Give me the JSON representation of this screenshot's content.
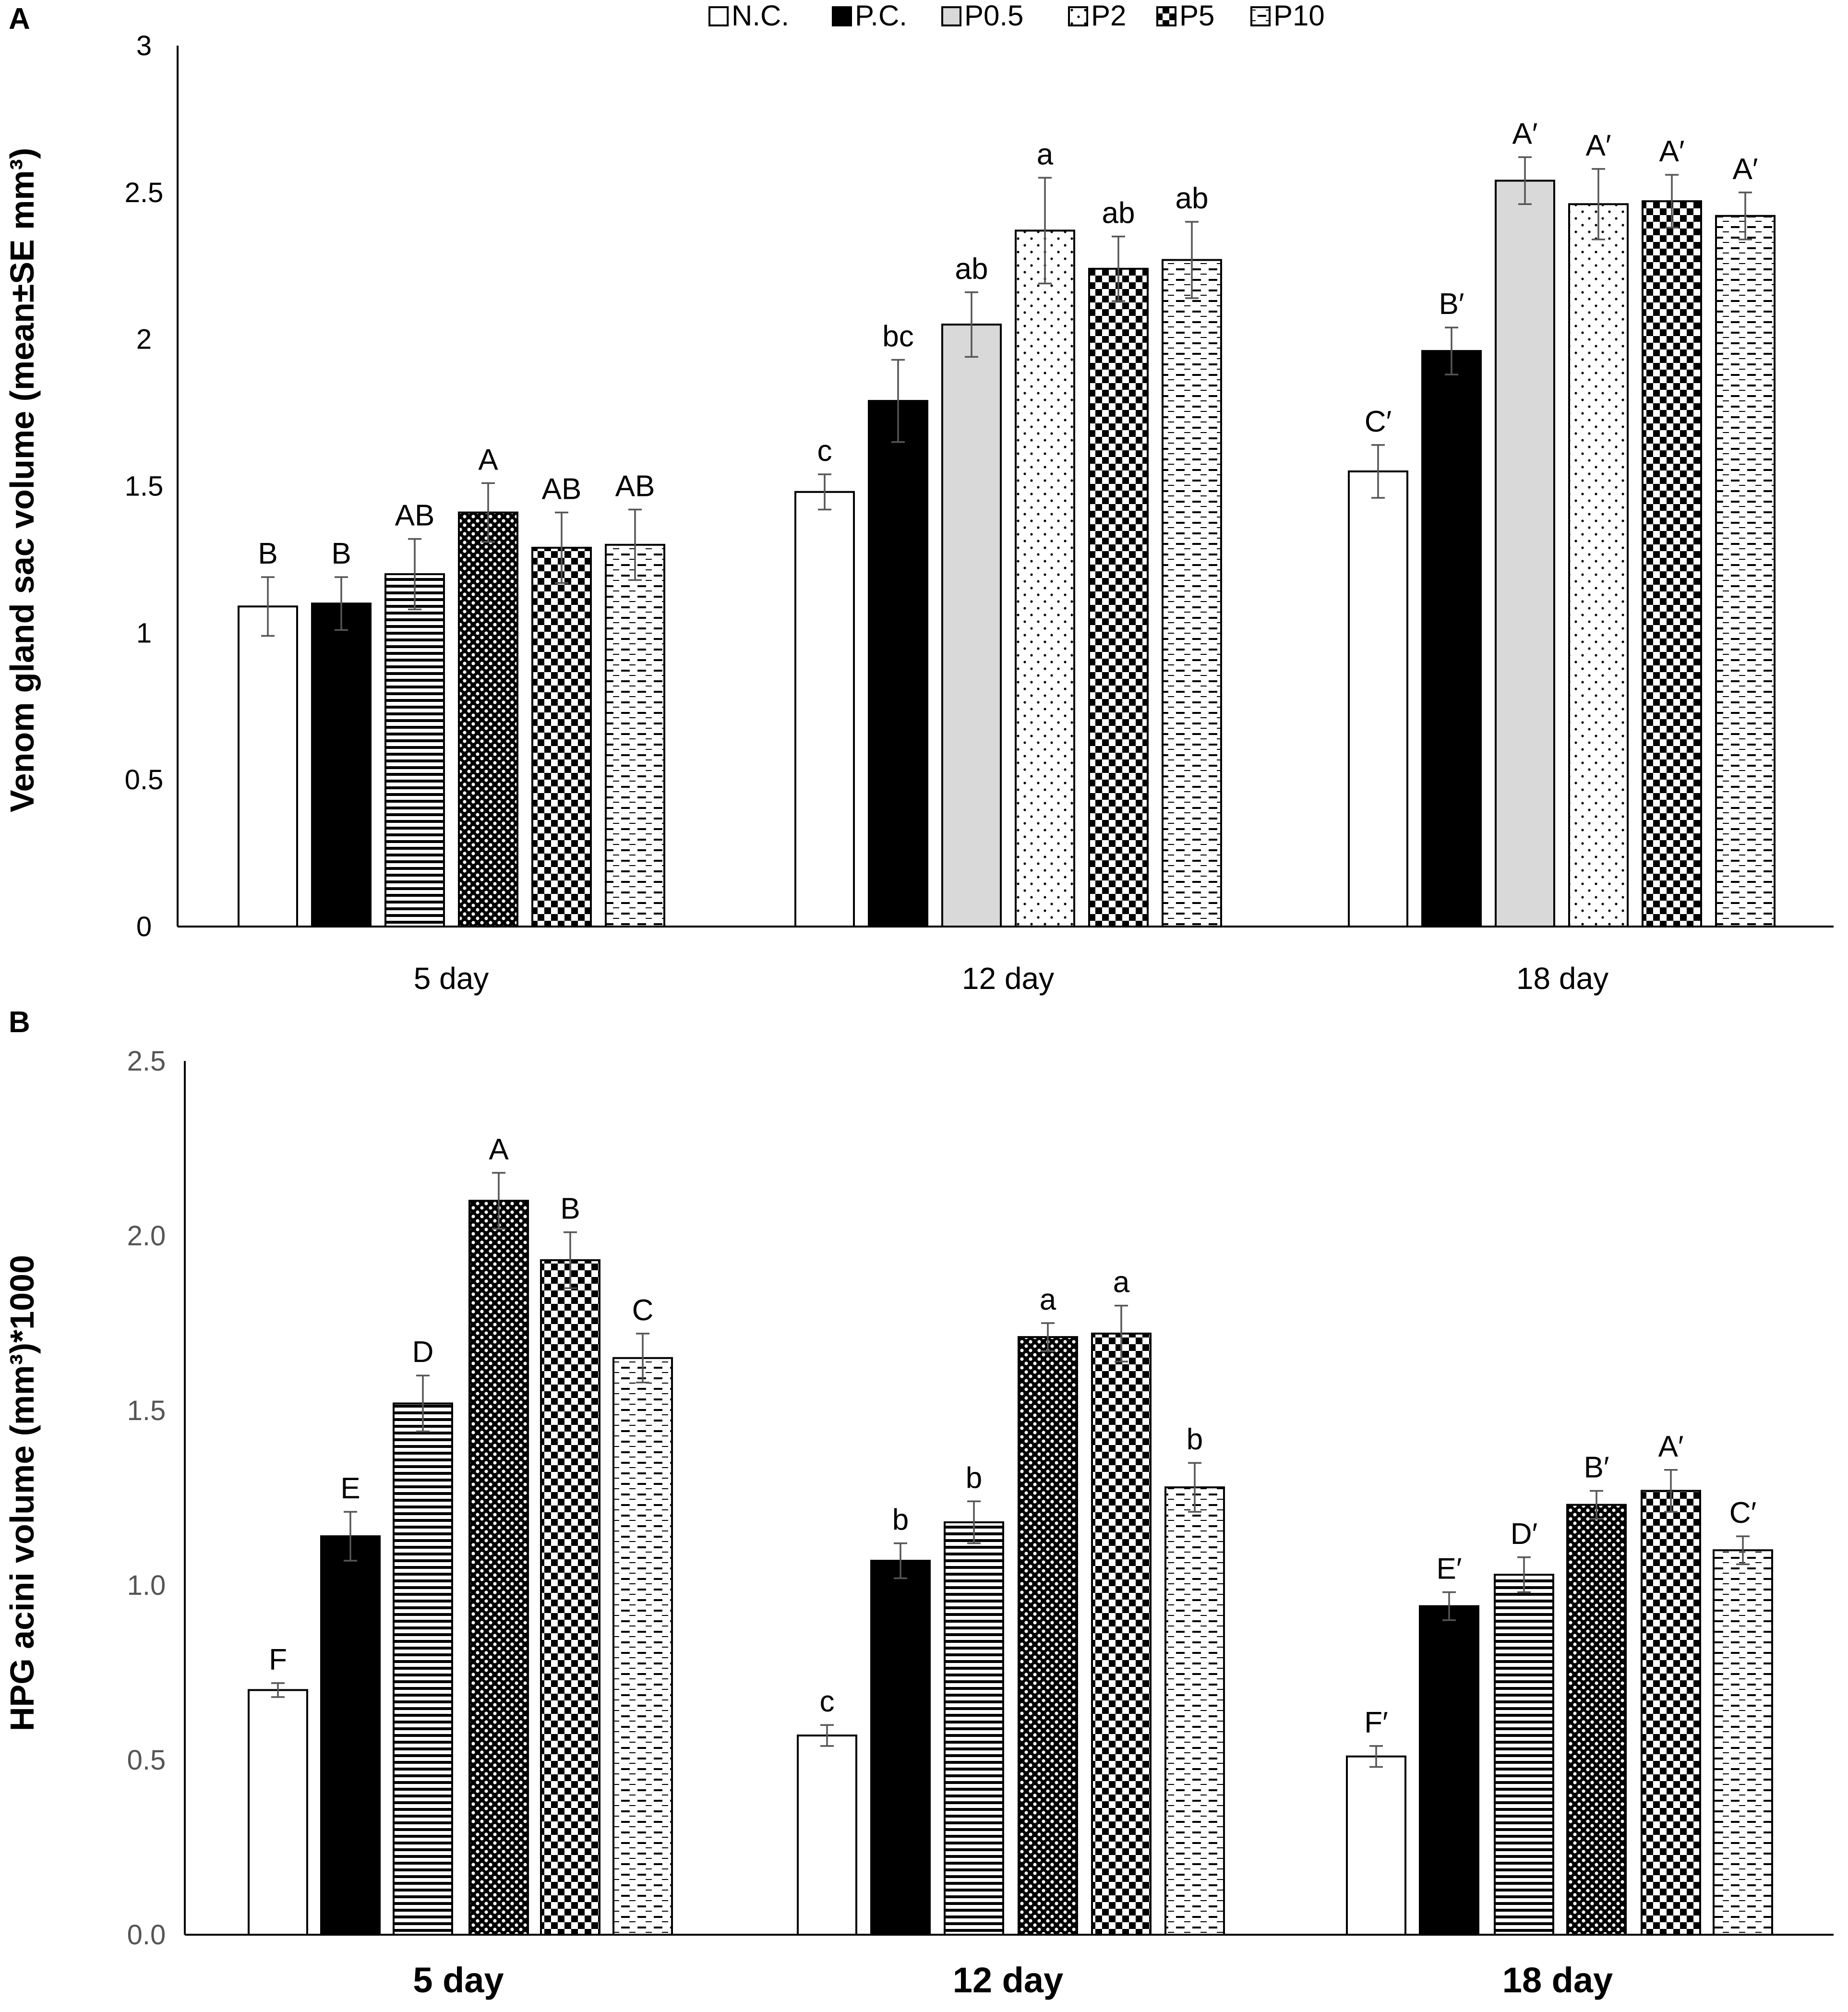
{
  "legend": {
    "items": [
      {
        "name": "N.C.",
        "pattern": "none"
      },
      {
        "name": "P.C.",
        "pattern": "solid-black"
      },
      {
        "name": "P0.5",
        "pattern": "light-gray"
      },
      {
        "name": "P2",
        "pattern": "sparse-dots"
      },
      {
        "name": "P5",
        "pattern": "checker"
      },
      {
        "name": "P10",
        "pattern": "dashes"
      }
    ]
  },
  "chart_data": [
    {
      "panel_label": "A",
      "type": "bar",
      "title": "",
      "xlabel": "",
      "ylabel": "Venom gland sac volume (mean±SE mm³)",
      "ylim": [
        0,
        3
      ],
      "yticks": [
        "0",
        "0.5",
        "1",
        "1.5",
        "2",
        "2.5",
        "3"
      ],
      "categories": [
        "5 day",
        "12 day",
        "18 day"
      ],
      "series": [
        {
          "name": "N.C.",
          "values": [
            1.09,
            1.48,
            1.55
          ],
          "errors": [
            0.1,
            0.06,
            0.09
          ],
          "labels": [
            "B",
            "c",
            "C′"
          ],
          "patterns": [
            "none",
            "none",
            "none"
          ]
        },
        {
          "name": "P.C.",
          "values": [
            1.1,
            1.79,
            1.96
          ],
          "errors": [
            0.09,
            0.14,
            0.08
          ],
          "labels": [
            "B",
            "bc",
            "B′"
          ],
          "patterns": [
            "solid-black",
            "solid-black",
            "solid-black"
          ]
        },
        {
          "name": "P0.5",
          "values": [
            1.2,
            2.05,
            2.54
          ],
          "errors": [
            0.12,
            0.11,
            0.08
          ],
          "labels": [
            "AB",
            "ab",
            "A′"
          ],
          "patterns": [
            "hlines",
            "light-gray",
            "light-gray"
          ]
        },
        {
          "name": "P2",
          "values": [
            1.41,
            2.37,
            2.46
          ],
          "errors": [
            0.1,
            0.18,
            0.12
          ],
          "labels": [
            "A",
            "a",
            "A′"
          ],
          "patterns": [
            "dense-dots",
            "sparse-dots",
            "sparse-dots"
          ]
        },
        {
          "name": "P5",
          "values": [
            1.29,
            2.24,
            2.47
          ],
          "errors": [
            0.12,
            0.11,
            0.09
          ],
          "labels": [
            "AB",
            "ab",
            "A′"
          ],
          "patterns": [
            "checker",
            "checker",
            "checker"
          ]
        },
        {
          "name": "P10",
          "values": [
            1.3,
            2.27,
            2.42
          ],
          "errors": [
            0.12,
            0.13,
            0.08
          ],
          "labels": [
            "AB",
            "ab",
            "A′"
          ],
          "patterns": [
            "dashes",
            "dashes",
            "dashes"
          ]
        }
      ]
    },
    {
      "panel_label": "B",
      "type": "bar",
      "title": "",
      "xlabel": "",
      "ylabel": "HPG acini volume (mm³)*1000",
      "ylim": [
        0,
        2.5
      ],
      "yticks": [
        "0.0",
        "0.5",
        "1.0",
        "1.5",
        "2.0",
        "2.5"
      ],
      "categories": [
        "5 day",
        "12 day",
        "18 day"
      ],
      "series": [
        {
          "name": "N.C.",
          "values": [
            0.7,
            0.57,
            0.51
          ],
          "errors": [
            0.02,
            0.03,
            0.03
          ],
          "labels": [
            "F",
            "c",
            "F′"
          ],
          "patterns": [
            "none",
            "none",
            "none"
          ]
        },
        {
          "name": "P.C.",
          "values": [
            1.14,
            1.07,
            0.94
          ],
          "errors": [
            0.07,
            0.05,
            0.04
          ],
          "labels": [
            "E",
            "b",
            "E′"
          ],
          "patterns": [
            "solid-black",
            "solid-black",
            "solid-black"
          ]
        },
        {
          "name": "P0.5",
          "values": [
            1.52,
            1.18,
            1.03
          ],
          "errors": [
            0.08,
            0.06,
            0.05
          ],
          "labels": [
            "D",
            "b",
            "D′"
          ],
          "patterns": [
            "hlines",
            "hlines",
            "hlines"
          ]
        },
        {
          "name": "P2",
          "values": [
            2.1,
            1.71,
            1.23
          ],
          "errors": [
            0.08,
            0.04,
            0.04
          ],
          "labels": [
            "A",
            "a",
            "B′"
          ],
          "patterns": [
            "dense-dots",
            "dense-dots",
            "dense-dots"
          ]
        },
        {
          "name": "P5",
          "values": [
            1.93,
            1.72,
            1.27
          ],
          "errors": [
            0.08,
            0.08,
            0.06
          ],
          "labels": [
            "B",
            "a",
            "A′"
          ],
          "patterns": [
            "checker",
            "checker",
            "checker"
          ]
        },
        {
          "name": "P10",
          "values": [
            1.65,
            1.28,
            1.1
          ],
          "errors": [
            0.07,
            0.07,
            0.04
          ],
          "labels": [
            "C",
            "b",
            "C′"
          ],
          "patterns": [
            "dashes",
            "dashes",
            "dashes"
          ]
        }
      ]
    }
  ]
}
